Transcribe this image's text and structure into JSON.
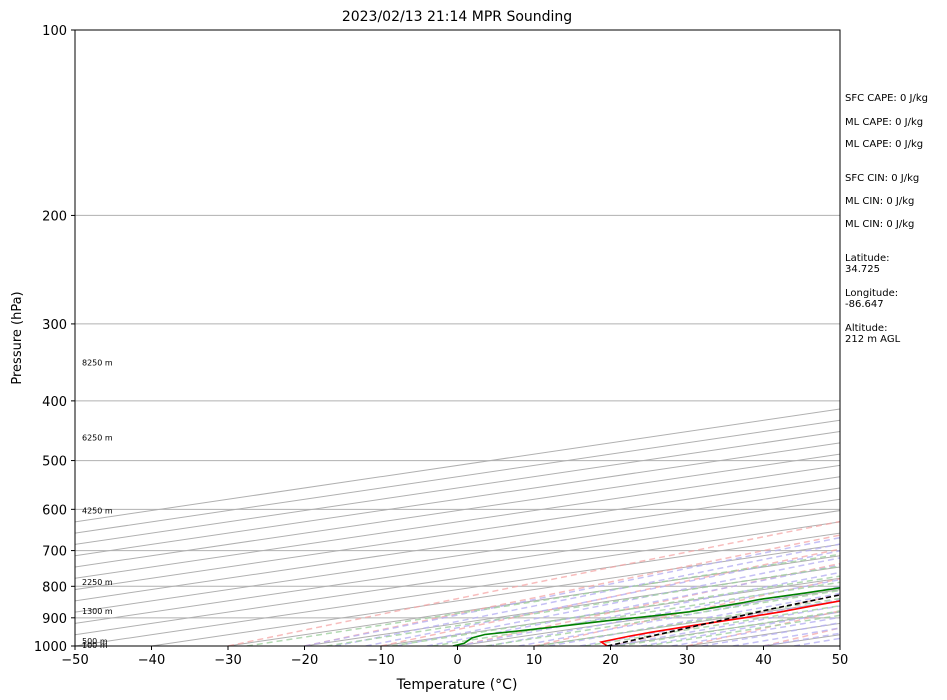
{
  "chart_data": {
    "type": "line",
    "subtype": "skew-t log-p",
    "title": "2023/02/13 21:14 MPR Sounding",
    "xlabel": "Temperature (°C)",
    "ylabel": "Pressure (hPa)",
    "xlim": [
      -50,
      50
    ],
    "ylim": [
      1000,
      100
    ],
    "y_scale": "log",
    "grid": true,
    "x_ticks": [
      "−50",
      "−40",
      "−30",
      "−20",
      "−10",
      "0",
      "10",
      "20",
      "30",
      "40",
      "50"
    ],
    "y_ticks": [
      {
        "p": 100,
        "label": "100"
      },
      {
        "p": 200,
        "label": "200"
      },
      {
        "p": 300,
        "label": "300"
      },
      {
        "p": 400,
        "label": "400"
      },
      {
        "p": 500,
        "label": "500"
      },
      {
        "p": 600,
        "label": "600"
      },
      {
        "p": 700,
        "label": "700"
      },
      {
        "p": 800,
        "label": "800"
      },
      {
        "p": 900,
        "label": "900"
      },
      {
        "p": 1000,
        "label": "1000"
      }
    ],
    "height_labels": [
      {
        "p": 1000,
        "label": "100 m"
      },
      {
        "p": 985,
        "label": "500 m"
      },
      {
        "p": 880,
        "label": "1300 m"
      },
      {
        "p": 790,
        "label": "2250 m"
      },
      {
        "p": 605,
        "label": "4250 m"
      },
      {
        "p": 460,
        "label": "6250 m"
      },
      {
        "p": 348,
        "label": "8250 m"
      }
    ],
    "series": [
      {
        "role": "temperature",
        "color": "#ff0000",
        "points": [
          [
            1000,
            19.6
          ],
          [
            985,
            15.2
          ],
          [
            965,
            13.8
          ],
          [
            950,
            13.1
          ],
          [
            925,
            12.7
          ],
          [
            900,
            12.5
          ],
          [
            880,
            12.0
          ],
          [
            860,
            10.8
          ],
          [
            840,
            9.8
          ],
          [
            820,
            8.8
          ],
          [
            800,
            8.2
          ],
          [
            780,
            7.8
          ],
          [
            750,
            6.4
          ],
          [
            720,
            4.9
          ],
          [
            700,
            3.8
          ],
          [
            670,
            2.6
          ],
          [
            650,
            1.5
          ],
          [
            620,
            0.0
          ],
          [
            600,
            -1.2
          ],
          [
            570,
            -2.6
          ],
          [
            550,
            -3.6
          ],
          [
            520,
            -5.2
          ],
          [
            500,
            -5.9
          ],
          [
            470,
            -7.6
          ],
          [
            450,
            -8.6
          ],
          [
            430,
            -9.9
          ],
          [
            410,
            -11.0
          ],
          [
            400,
            -11.6
          ],
          [
            380,
            -12.8
          ],
          [
            360,
            -14.2
          ],
          [
            340,
            -15.8
          ],
          [
            320,
            -17.4
          ],
          [
            300,
            -19.2
          ],
          [
            290,
            -20.2
          ],
          [
            280,
            -21.3
          ],
          [
            270,
            -22.6
          ],
          [
            262,
            -23.5
          ]
        ]
      },
      {
        "role": "dewpoint",
        "color": "#008000",
        "points": [
          [
            1000,
            -0.6
          ],
          [
            990,
            -1.5
          ],
          [
            980,
            -3.4
          ],
          [
            970,
            -5.3
          ],
          [
            958,
            -6.6
          ],
          [
            945,
            -5.4
          ],
          [
            925,
            -3.7
          ],
          [
            910,
            -2.9
          ],
          [
            895,
            -1.2
          ],
          [
            880,
            0.0
          ],
          [
            865,
            -0.6
          ],
          [
            850,
            -1.1
          ],
          [
            840,
            -1.8
          ],
          [
            820,
            -1.5
          ],
          [
            800,
            -1.6
          ],
          [
            790,
            -2.2
          ],
          [
            775,
            -6.0
          ],
          [
            760,
            -9.2
          ],
          [
            748,
            -11.6
          ],
          [
            735,
            -13.4
          ],
          [
            725,
            -14.0
          ],
          [
            715,
            -12.8
          ],
          [
            702,
            -12.5
          ],
          [
            690,
            -13.1
          ],
          [
            678,
            -13.9
          ],
          [
            665,
            -14.0
          ],
          [
            650,
            -13.8
          ],
          [
            640,
            -13.2
          ],
          [
            620,
            -13.0
          ],
          [
            605,
            -14.9
          ],
          [
            590,
            -16.8
          ],
          [
            570,
            -19.0
          ],
          [
            555,
            -20.5
          ],
          [
            540,
            -20.7
          ],
          [
            520,
            -19.4
          ],
          [
            510,
            -18.3
          ],
          [
            500,
            -17.6
          ],
          [
            490,
            -18.3
          ],
          [
            475,
            -19.3
          ],
          [
            455,
            -19.1
          ],
          [
            440,
            -19.2
          ],
          [
            420,
            -18.3
          ],
          [
            410,
            -17.0
          ],
          [
            400,
            -17.2
          ],
          [
            390,
            -16.0
          ],
          [
            385,
            -15.5
          ],
          [
            370,
            -16.3
          ],
          [
            360,
            -16.1
          ],
          [
            350,
            -16.2
          ],
          [
            340,
            -16.0
          ],
          [
            330,
            -14.6
          ],
          [
            320,
            -14.4
          ],
          [
            310,
            -14.3
          ],
          [
            305,
            -13.6
          ],
          [
            300,
            -11.3
          ],
          [
            296,
            -11.9
          ],
          [
            292,
            -15.2
          ],
          [
            290,
            -24.5
          ],
          [
            290,
            -50
          ]
        ]
      },
      {
        "role": "parcel",
        "color": "#000000",
        "dashed": true,
        "points": [
          [
            1000,
            19.6
          ],
          [
            870,
            8.2
          ],
          [
            800,
            2.6
          ],
          [
            760,
            -0.6
          ],
          [
            740,
            -1.2
          ],
          [
            720,
            -0.9
          ],
          [
            700,
            -1.7
          ],
          [
            650,
            -3.4
          ],
          [
            600,
            -5.5
          ],
          [
            550,
            -7.9
          ],
          [
            500,
            -11.1
          ],
          [
            450,
            -14.8
          ],
          [
            400,
            -18.9
          ],
          [
            350,
            -23.4
          ],
          [
            300,
            -27.8
          ],
          [
            250,
            -32.7
          ]
        ]
      }
    ]
  },
  "side_panel": {
    "sfc_cape": "SFC CAPE: 0 J/kg",
    "ml_cape_1": "ML CAPE: 0 J/kg",
    "ml_cape_2": "ML CAPE: 0 J/kg",
    "sfc_cin": "SFC CIN: 0 J/kg",
    "ml_cin_1": "ML CIN: 0 J/kg",
    "ml_cin_2": "ML CIN: 0 J/kg",
    "latitude_label": "Latitude:",
    "latitude_value": "34.725",
    "longitude_label": "Longitude:",
    "longitude_value": "-86.647",
    "altitude_label": "Altitude:",
    "altitude_value": "212 m AGL"
  },
  "colors": {
    "isotherm": "#b0b0b0",
    "dry_adiabat": "#f4a6a6",
    "moist_adiabat": "#b6b0f2",
    "mixing_ratio": "#9fd09f"
  }
}
